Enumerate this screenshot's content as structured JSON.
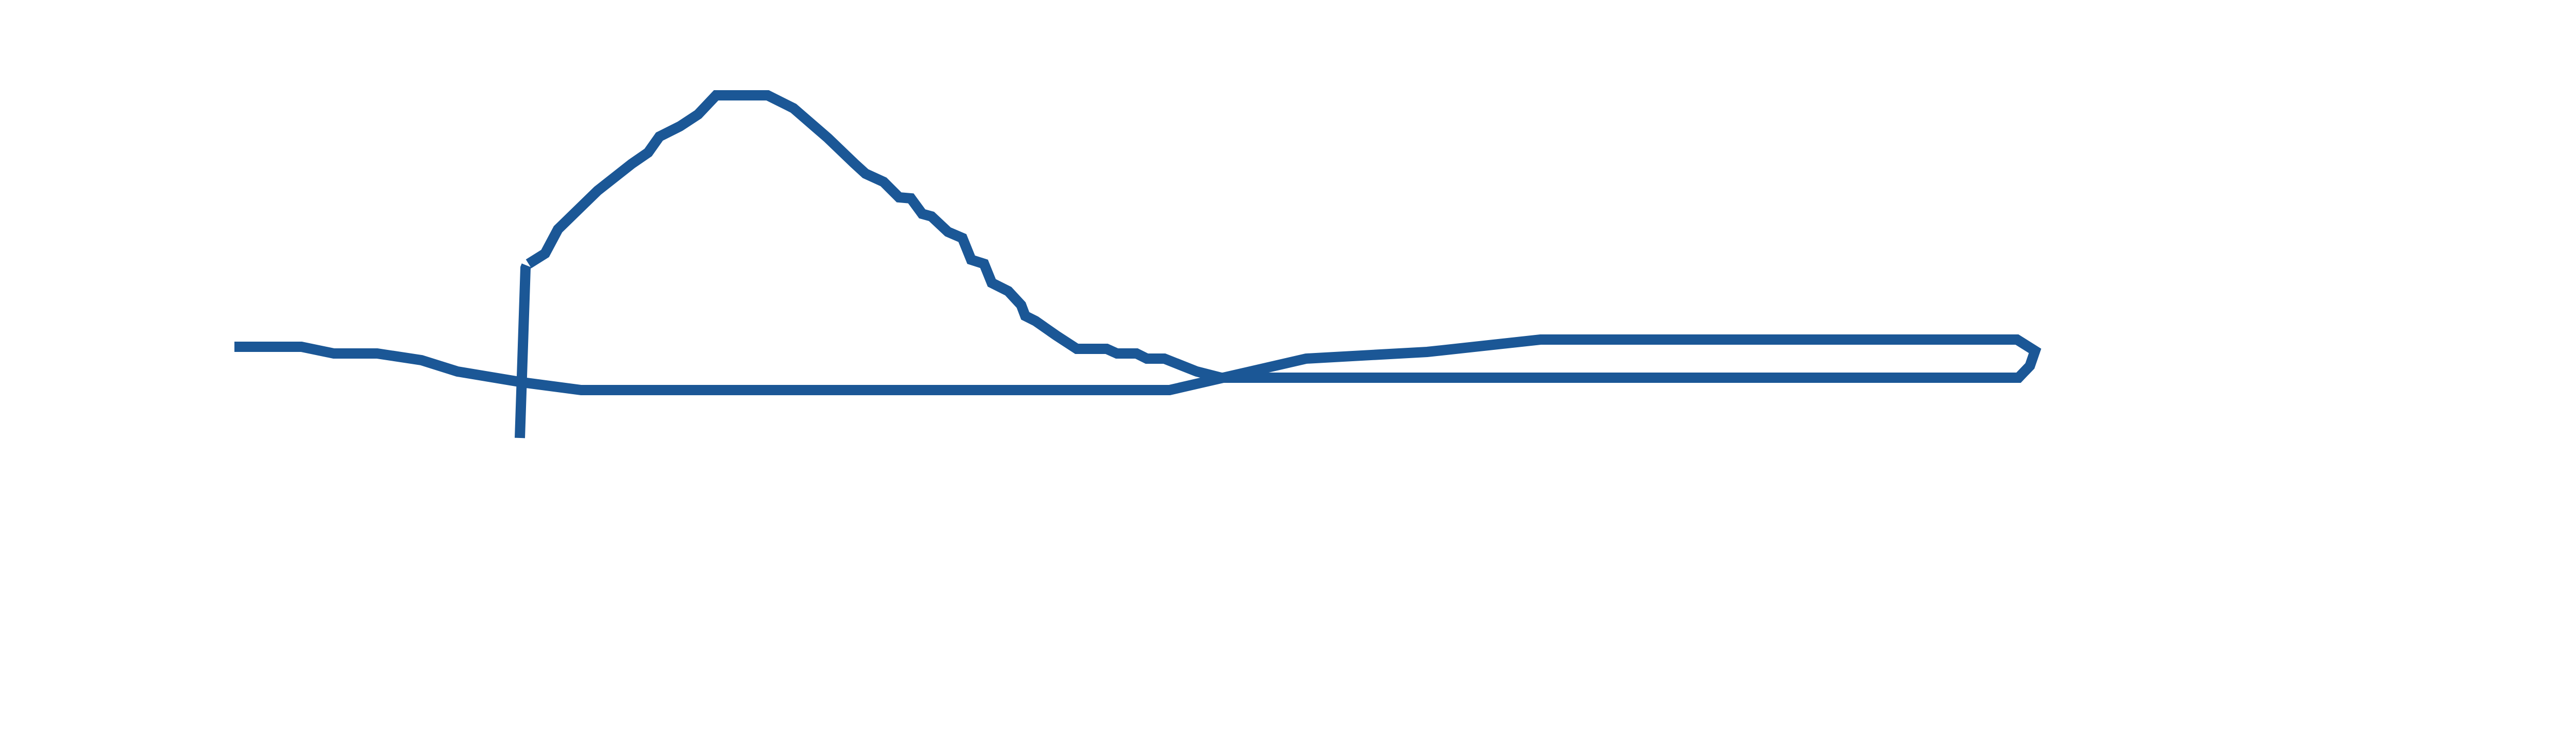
{
  "drawing": {
    "stroke_color": "#1b5796",
    "background": "#ffffff",
    "description_elements": [
      "vertical-stroke",
      "main-path"
    ]
  }
}
